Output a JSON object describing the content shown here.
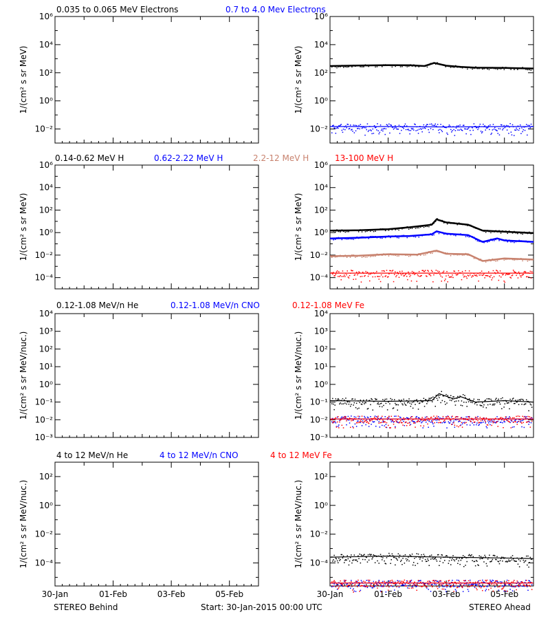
{
  "footer": {
    "left": "STEREO Behind",
    "center": "Start: 30-Jan-2015 00:00 UTC",
    "right": "STEREO Ahead"
  },
  "x_ticks": [
    "30-Jan",
    "01-Feb",
    "03-Feb",
    "05-Feb"
  ],
  "chart_data": [
    {
      "type": "line",
      "panel": "electrons-behind",
      "legend": [
        {
          "name": "0.035 to 0.065 MeV Electrons",
          "color": "#000000"
        },
        {
          "name": "0.7 to 4.0 Mev Electrons",
          "color": "#0000ff"
        }
      ],
      "ylabel": "1/(cm² s sr MeV)",
      "yscale": "log",
      "ylim": [
        0.001,
        1000000
      ],
      "yticks": [
        "10⁻²",
        "10⁰",
        "10²",
        "10⁴",
        "10⁶"
      ],
      "xlim": [
        "30-Jan-2015",
        "06-Feb-2015"
      ],
      "series": []
    },
    {
      "type": "line",
      "panel": "electrons-ahead",
      "ylabel": "1/(cm² s sr MeV)",
      "yscale": "log",
      "ylim": [
        0.001,
        1000000
      ],
      "yticks": [
        "10⁻²",
        "10⁰",
        "10²",
        "10⁴",
        "10⁶"
      ],
      "xlim": [
        "30-Jan-2015",
        "06-Feb-2015"
      ],
      "series": [
        {
          "name": "0.035 to 0.065 MeV Electrons",
          "color": "#000000",
          "x": [
            "2015-01-30 00:00",
            "2015-01-31 00:00",
            "2015-02-01 00:00",
            "2015-02-01 18:00",
            "2015-02-02 06:00",
            "2015-02-02 14:00",
            "2015-02-03 00:00",
            "2015-02-03 12:00",
            "2015-02-04 00:00",
            "2015-02-05 00:00",
            "2015-02-06 00:00"
          ],
          "y": [
            300,
            330,
            350,
            340,
            300,
            500,
            320,
            260,
            230,
            220,
            200
          ]
        },
        {
          "name": "0.7 to 4.0 Mev Electrons",
          "color": "#0000ff",
          "x": [
            "2015-01-30 00:00",
            "2015-02-01 00:00",
            "2015-02-03 00:00",
            "2015-02-05 00:00",
            "2015-02-06 00:00"
          ],
          "y": [
            0.015,
            0.015,
            0.014,
            0.015,
            0.015
          ]
        }
      ]
    },
    {
      "type": "line",
      "panel": "protons-behind",
      "legend": [
        {
          "name": "0.14-0.62 MeV H",
          "color": "#000000"
        },
        {
          "name": "0.62-2.22 MeV H",
          "color": "#0000ff"
        },
        {
          "name": "2.2-12 MeV H",
          "color": "#c8826e"
        },
        {
          "name": "13-100 MeV H",
          "color": "#ff0000"
        }
      ],
      "ylabel": "1/(cm² s sr MeV)",
      "yscale": "log",
      "ylim": [
        1e-05,
        1000000
      ],
      "yticks": [
        "10⁻⁴",
        "10⁻²",
        "10⁰",
        "10²",
        "10⁴",
        "10⁶"
      ],
      "xlim": [
        "30-Jan-2015",
        "06-Feb-2015"
      ],
      "series": []
    },
    {
      "type": "line",
      "panel": "protons-ahead",
      "ylabel": "1/(cm² s sr MeV)",
      "yscale": "log",
      "ylim": [
        1e-05,
        1000000
      ],
      "yticks": [
        "10⁻⁴",
        "10⁻²",
        "10⁰",
        "10²",
        "10⁴",
        "10⁶"
      ],
      "xlim": [
        "30-Jan-2015",
        "06-Feb-2015"
      ],
      "series": [
        {
          "name": "0.14-0.62 MeV H",
          "color": "#000000",
          "x": [
            "2015-01-30 00:00",
            "2015-01-31 00:00",
            "2015-02-01 00:00",
            "2015-02-01 18:00",
            "2015-02-02 12:00",
            "2015-02-02 16:00",
            "2015-02-03 00:00",
            "2015-02-03 18:00",
            "2015-02-04 06:00",
            "2015-02-05 00:00",
            "2015-02-06 00:00"
          ],
          "y": [
            1.5,
            1.6,
            2.0,
            3.0,
            5.0,
            15,
            8,
            5,
            1.5,
            1.2,
            0.9
          ]
        },
        {
          "name": "0.62-2.22 MeV H",
          "color": "#0000ff",
          "x": [
            "2015-01-30 00:00",
            "2015-01-31 00:00",
            "2015-02-01 00:00",
            "2015-02-01 18:00",
            "2015-02-02 12:00",
            "2015-02-02 16:00",
            "2015-02-03 00:00",
            "2015-02-03 18:00",
            "2015-02-04 06:00",
            "2015-02-04 18:00",
            "2015-02-05 00:00",
            "2015-02-06 00:00"
          ],
          "y": [
            0.3,
            0.35,
            0.45,
            0.5,
            0.7,
            1.3,
            0.8,
            0.6,
            0.15,
            0.3,
            0.2,
            0.15
          ]
        },
        {
          "name": "2.2-12 MeV H",
          "color": "#c8826e",
          "x": [
            "2015-01-30 00:00",
            "2015-01-31 00:00",
            "2015-02-01 00:00",
            "2015-02-02 00:00",
            "2015-02-02 16:00",
            "2015-02-03 00:00",
            "2015-02-03 18:00",
            "2015-02-04 06:00",
            "2015-02-05 00:00",
            "2015-02-06 00:00"
          ],
          "y": [
            0.008,
            0.009,
            0.012,
            0.011,
            0.025,
            0.013,
            0.012,
            0.003,
            0.005,
            0.004
          ]
        },
        {
          "name": "13-100 MeV H",
          "color": "#ff0000",
          "x": [
            "2015-01-30 00:00",
            "2015-02-01 00:00",
            "2015-02-03 00:00",
            "2015-02-05 00:00",
            "2015-02-06 00:00"
          ],
          "y": [
            0.00025,
            0.00025,
            0.00025,
            0.00025,
            0.00025
          ]
        }
      ]
    },
    {
      "type": "scatter",
      "panel": "ions-low-behind",
      "legend": [
        {
          "name": "0.12-1.08 MeV/n He",
          "color": "#000000"
        },
        {
          "name": "0.12-1.08 MeV/n CNO",
          "color": "#0000ff"
        },
        {
          "name": "0.12-1.08 MeV Fe",
          "color": "#ff0000"
        }
      ],
      "ylabel": "1/(cm² s sr MeV/nuc.)",
      "yscale": "log",
      "ylim": [
        0.001,
        10000
      ],
      "yticks": [
        "10⁻³",
        "10⁻²",
        "10⁻¹",
        "10⁰",
        "10¹",
        "10²",
        "10³",
        "10⁴"
      ],
      "xlim": [
        "30-Jan-2015",
        "06-Feb-2015"
      ],
      "series": []
    },
    {
      "type": "scatter",
      "panel": "ions-low-ahead",
      "ylabel": "1/(cm² s sr MeV/nuc.)",
      "yscale": "log",
      "ylim": [
        0.001,
        10000
      ],
      "yticks": [
        "10⁻³",
        "10⁻²",
        "10⁻¹",
        "10⁰",
        "10¹",
        "10²",
        "10³",
        "10⁴"
      ],
      "xlim": [
        "30-Jan-2015",
        "06-Feb-2015"
      ],
      "series": [
        {
          "name": "0.12-1.08 MeV/n He",
          "color": "#000000",
          "x": [
            "2015-01-30 00:00",
            "2015-02-01 00:00",
            "2015-02-02 12:00",
            "2015-02-02 18:00",
            "2015-02-03 06:00",
            "2015-02-03 12:00",
            "2015-02-04 00:00",
            "2015-02-05 00:00",
            "2015-02-06 00:00"
          ],
          "y": [
            0.12,
            0.11,
            0.12,
            0.3,
            0.15,
            0.2,
            0.1,
            0.12,
            0.1
          ]
        },
        {
          "name": "0.12-1.08 MeV/n CNO",
          "color": "#0000ff",
          "x": [
            "2015-01-30 00:00",
            "2015-02-06 00:00"
          ],
          "y": [
            0.011,
            0.011
          ]
        },
        {
          "name": "0.12-1.08 MeV Fe",
          "color": "#ff0000",
          "x": [
            "2015-01-30 00:00",
            "2015-02-06 00:00"
          ],
          "y": [
            0.011,
            0.011
          ]
        }
      ]
    },
    {
      "type": "scatter",
      "panel": "ions-high-behind",
      "legend": [
        {
          "name": "4 to 12 MeV/n He",
          "color": "#000000"
        },
        {
          "name": "4 to 12 MeV/n CNO",
          "color": "#0000ff"
        },
        {
          "name": "4 to 12 MeV Fe",
          "color": "#ff0000"
        }
      ],
      "ylabel": "1/(cm² s sr MeV/nuc.)",
      "yscale": "log",
      "ylim": [
        2.5e-06,
        1000
      ],
      "yticks": [
        "10⁻⁴",
        "10⁻²",
        "10⁰",
        "10²"
      ],
      "xlim": [
        "30-Jan-2015",
        "06-Feb-2015"
      ],
      "series": []
    },
    {
      "type": "scatter",
      "panel": "ions-high-ahead",
      "ylabel": "1/(cm² s sr MeV/nuc.)",
      "yscale": "log",
      "ylim": [
        2.5e-06,
        1000
      ],
      "yticks": [
        "10⁻⁴",
        "10⁻²",
        "10⁰",
        "10²"
      ],
      "xlim": [
        "30-Jan-2015",
        "06-Feb-2015"
      ],
      "series": [
        {
          "name": "4 to 12 MeV/n He",
          "color": "#000000",
          "x": [
            "2015-01-30 00:00",
            "2015-02-01 00:00",
            "2015-02-03 00:00",
            "2015-02-05 00:00",
            "2015-02-06 00:00"
          ],
          "y": [
            0.00025,
            0.0003,
            0.00025,
            0.00022,
            0.0002
          ]
        },
        {
          "name": "4 to 12 MeV/n CNO",
          "color": "#0000ff",
          "x": [
            "2015-01-30 00:00",
            "2015-02-06 00:00"
          ],
          "y": [
            4e-06,
            4e-06
          ]
        },
        {
          "name": "4 to 12 MeV Fe",
          "color": "#ff0000",
          "x": [
            "2015-01-30 00:00",
            "2015-02-06 00:00"
          ],
          "y": [
            4e-06,
            4e-06
          ]
        }
      ]
    }
  ]
}
